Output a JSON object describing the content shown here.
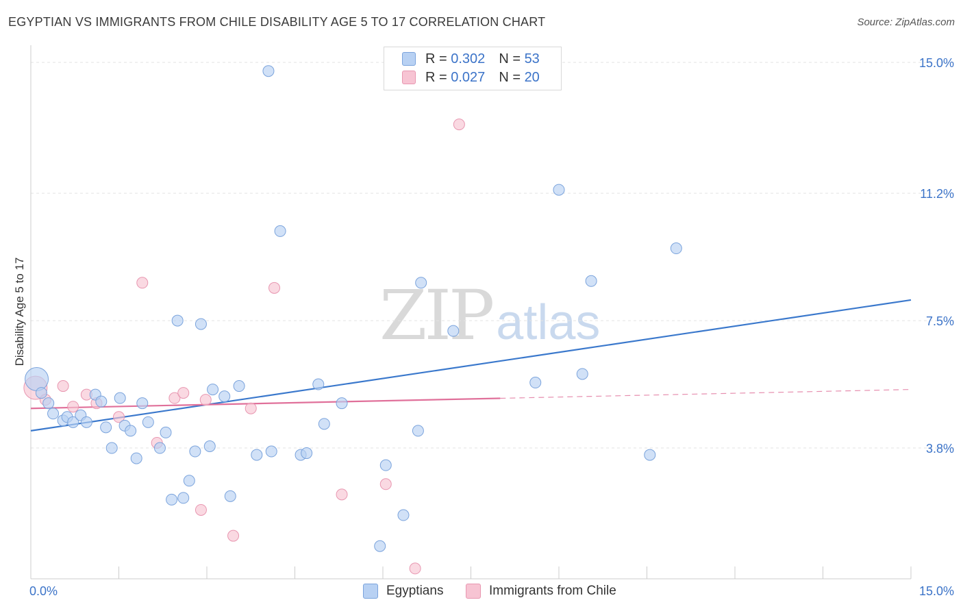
{
  "title": "EGYPTIAN VS IMMIGRANTS FROM CHILE DISABILITY AGE 5 TO 17 CORRELATION CHART",
  "source": "Source: ZipAtlas.com",
  "watermark": {
    "zip": "ZIP",
    "atlas": "atlas"
  },
  "legend": {
    "rows": [
      {
        "r_label": "R = ",
        "r_value": "0.302",
        "n_label": "N = ",
        "n_value": "53"
      },
      {
        "r_label": "R = ",
        "r_value": "0.027",
        "n_label": "N = ",
        "n_value": "20"
      }
    ]
  },
  "bottom_legend": {
    "egyptians": "Egyptians",
    "chile": "Immigrants from Chile"
  },
  "colors": {
    "blue_fill": "#b8d1f3",
    "blue_stroke": "#7aa3dc",
    "blue_line": "#3a78cc",
    "pink_fill": "#f7c4d3",
    "pink_stroke": "#e896b0",
    "pink_line": "#e0709a",
    "tick_label": "#3b73c8",
    "grid": "#e3e3e3"
  },
  "chart_data": {
    "type": "scatter",
    "title": "EGYPTIAN VS IMMIGRANTS FROM CHILE DISABILITY AGE 5 TO 17 CORRELATION CHART",
    "xlabel": "",
    "ylabel": "Disability Age 5 to 17",
    "xlim": [
      0,
      15
    ],
    "ylim": [
      0,
      15.5
    ],
    "x_tick_labels": [
      {
        "value": 0,
        "label": "0.0%"
      },
      {
        "value": 15,
        "label": "15.0%"
      }
    ],
    "y_ticks": [
      {
        "value": 3.8,
        "label": "3.8%"
      },
      {
        "value": 7.5,
        "label": "7.5%"
      },
      {
        "value": 11.2,
        "label": "11.2%"
      },
      {
        "value": 15.0,
        "label": "15.0%"
      }
    ],
    "grid": true,
    "legend_position": "top-center",
    "series": [
      {
        "name": "Egyptians",
        "r": 0.302,
        "n": 53,
        "trend": {
          "x": [
            0,
            15
          ],
          "y": [
            4.3,
            8.1
          ],
          "dashed_from": null
        },
        "points": [
          {
            "x": 0.1,
            "y": 5.8,
            "big": true
          },
          {
            "x": 0.18,
            "y": 5.4
          },
          {
            "x": 0.3,
            "y": 5.1
          },
          {
            "x": 0.38,
            "y": 4.8
          },
          {
            "x": 0.55,
            "y": 4.6
          },
          {
            "x": 0.62,
            "y": 4.7
          },
          {
            "x": 0.72,
            "y": 4.55
          },
          {
            "x": 0.85,
            "y": 4.75
          },
          {
            "x": 0.95,
            "y": 4.55
          },
          {
            "x": 1.1,
            "y": 5.35
          },
          {
            "x": 1.2,
            "y": 5.15
          },
          {
            "x": 1.28,
            "y": 4.4
          },
          {
            "x": 1.38,
            "y": 3.8
          },
          {
            "x": 1.52,
            "y": 5.25
          },
          {
            "x": 1.6,
            "y": 4.45
          },
          {
            "x": 1.7,
            "y": 4.3
          },
          {
            "x": 1.8,
            "y": 3.5
          },
          {
            "x": 1.9,
            "y": 5.1
          },
          {
            "x": 2.0,
            "y": 4.55
          },
          {
            "x": 2.2,
            "y": 3.8
          },
          {
            "x": 2.3,
            "y": 4.25
          },
          {
            "x": 2.4,
            "y": 2.3
          },
          {
            "x": 2.5,
            "y": 7.5
          },
          {
            "x": 2.6,
            "y": 2.35
          },
          {
            "x": 2.7,
            "y": 2.85
          },
          {
            "x": 2.8,
            "y": 3.7
          },
          {
            "x": 2.9,
            "y": 7.4
          },
          {
            "x": 3.05,
            "y": 3.85
          },
          {
            "x": 3.1,
            "y": 5.5
          },
          {
            "x": 3.3,
            "y": 5.3
          },
          {
            "x": 3.4,
            "y": 2.4
          },
          {
            "x": 3.55,
            "y": 5.6
          },
          {
            "x": 3.85,
            "y": 3.6
          },
          {
            "x": 4.05,
            "y": 14.75
          },
          {
            "x": 4.1,
            "y": 3.7
          },
          {
            "x": 4.25,
            "y": 10.1
          },
          {
            "x": 4.6,
            "y": 3.6
          },
          {
            "x": 4.7,
            "y": 3.65
          },
          {
            "x": 4.9,
            "y": 5.65
          },
          {
            "x": 5.0,
            "y": 4.5
          },
          {
            "x": 5.3,
            "y": 5.1
          },
          {
            "x": 5.95,
            "y": 0.95
          },
          {
            "x": 6.05,
            "y": 3.3
          },
          {
            "x": 6.35,
            "y": 1.85
          },
          {
            "x": 6.6,
            "y": 4.3
          },
          {
            "x": 6.65,
            "y": 8.6
          },
          {
            "x": 7.2,
            "y": 7.2
          },
          {
            "x": 8.6,
            "y": 5.7
          },
          {
            "x": 9.0,
            "y": 11.3
          },
          {
            "x": 9.4,
            "y": 5.95
          },
          {
            "x": 9.55,
            "y": 8.65
          },
          {
            "x": 10.55,
            "y": 3.6
          },
          {
            "x": 11.0,
            "y": 9.6
          }
        ]
      },
      {
        "name": "Immigrants from Chile",
        "r": 0.027,
        "n": 20,
        "trend": {
          "x": [
            0,
            15
          ],
          "y": [
            4.95,
            5.5
          ],
          "dashed_from": 8.0
        },
        "points": [
          {
            "x": 0.08,
            "y": 5.55,
            "big": true
          },
          {
            "x": 0.25,
            "y": 5.2
          },
          {
            "x": 0.55,
            "y": 5.6
          },
          {
            "x": 0.72,
            "y": 5.0
          },
          {
            "x": 0.95,
            "y": 5.35
          },
          {
            "x": 1.12,
            "y": 5.1
          },
          {
            "x": 1.5,
            "y": 4.7
          },
          {
            "x": 1.9,
            "y": 8.6
          },
          {
            "x": 2.15,
            "y": 3.95
          },
          {
            "x": 2.45,
            "y": 5.25
          },
          {
            "x": 2.6,
            "y": 5.4
          },
          {
            "x": 2.9,
            "y": 2.0
          },
          {
            "x": 2.98,
            "y": 5.2
          },
          {
            "x": 3.45,
            "y": 1.25
          },
          {
            "x": 3.75,
            "y": 4.95
          },
          {
            "x": 4.15,
            "y": 8.45
          },
          {
            "x": 5.3,
            "y": 2.45
          },
          {
            "x": 6.05,
            "y": 2.75
          },
          {
            "x": 6.55,
            "y": 0.3
          },
          {
            "x": 7.3,
            "y": 13.2
          }
        ]
      }
    ]
  }
}
